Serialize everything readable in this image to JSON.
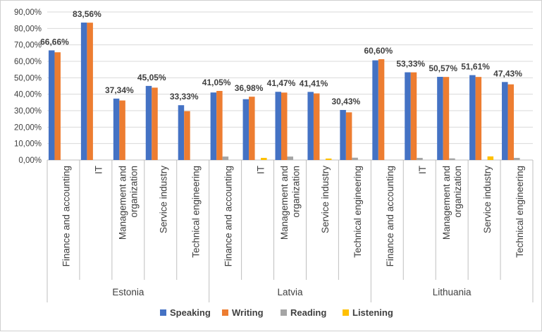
{
  "chart_data": {
    "type": "bar",
    "title": "",
    "xlabel": "",
    "ylabel": "",
    "ylim": [
      0,
      90
    ],
    "y_ticks": [
      "0,00%",
      "10,00%",
      "20,00%",
      "30,00%",
      "40,00%",
      "50,00%",
      "60,00%",
      "70,00%",
      "80,00%",
      "90,00%"
    ],
    "legend_position": "bottom",
    "groups": [
      {
        "name": "Estonia",
        "categories": [
          "Finance and accounting",
          "IT",
          "Management and organization",
          "Service industry",
          "Technical engineering"
        ]
      },
      {
        "name": "Latvia",
        "categories": [
          "Finance and accounting",
          "IT",
          "Management and organization",
          "Service industry",
          "Technical engineering"
        ]
      },
      {
        "name": "Lithuania",
        "categories": [
          "Finance and accounting",
          "IT",
          "Management and organization",
          "Service industry",
          "Technical engineering"
        ]
      }
    ],
    "series": [
      {
        "name": "Speaking",
        "color": "#4472C4",
        "values": [
          66.66,
          83.56,
          37.34,
          45.05,
          33.33,
          41.05,
          36.98,
          41.47,
          41.41,
          30.43,
          60.6,
          53.33,
          50.57,
          51.61,
          47.43
        ]
      },
      {
        "name": "Writing",
        "color": "#ED7D31",
        "values": [
          65.5,
          83.5,
          36.2,
          44.0,
          29.7,
          42.0,
          38.5,
          41.0,
          40.5,
          29.0,
          61.3,
          53.3,
          50.5,
          50.5,
          46.0
        ]
      },
      {
        "name": "Reading",
        "color": "#A5A5A5",
        "values": [
          0,
          0,
          0,
          0,
          0,
          2.1,
          0,
          2.1,
          0,
          1.4,
          0,
          1.3,
          1.0,
          0,
          1.3
        ]
      },
      {
        "name": "Listening",
        "color": "#FFC000",
        "values": [
          0,
          0,
          0,
          0,
          0,
          0,
          1.3,
          0,
          0.9,
          0,
          0,
          0,
          0,
          2.2,
          0
        ]
      }
    ],
    "data_labels": [
      "66,66%",
      "83,56%",
      "37,34%",
      "45,05%",
      "33,33%",
      "41,05%",
      "36,98%",
      "41,47%",
      "41,41%",
      "30,43%",
      "60,60%",
      "53,33%",
      "50,57%",
      "51,61%",
      "47,43%"
    ],
    "category_labels": [
      [
        "Finance and accounting"
      ],
      [
        "IT"
      ],
      [
        "Management and",
        "organization"
      ],
      [
        "Service industry"
      ],
      [
        "Technical engineering"
      ]
    ]
  }
}
